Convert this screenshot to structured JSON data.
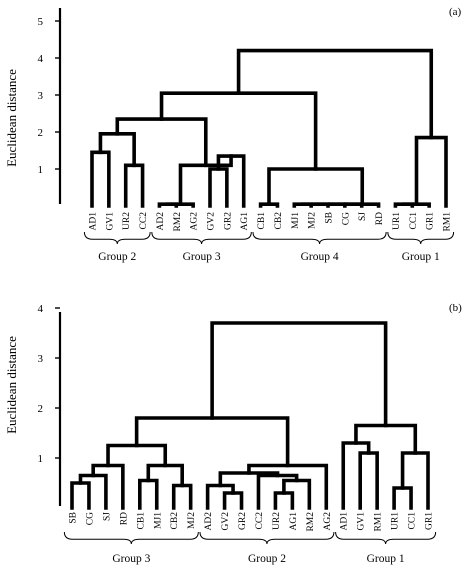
{
  "panels": [
    {
      "id": "a",
      "tag": "(a)",
      "ylabel": "Euclidean distance",
      "yticks": [
        "1",
        "2",
        "3",
        "4",
        "5"
      ],
      "ymax": 5,
      "leaves": [
        "AD1",
        "GV1",
        "UR2",
        "CC2",
        "AD2",
        "RM2",
        "AG2",
        "GV2",
        "GR2",
        "AG1",
        "CB1",
        "CB2",
        "MJ1",
        "MJ2",
        "SB",
        "CG",
        "SJ",
        "RD",
        "UR1",
        "CC1",
        "GR1",
        "RM1"
      ],
      "groups": [
        {
          "label": "Group 2",
          "first": 0,
          "last": 3
        },
        {
          "label": "Group 3",
          "first": 4,
          "last": 9
        },
        {
          "label": "Group 4",
          "first": 10,
          "last": 17
        },
        {
          "label": "Group 1",
          "first": 18,
          "last": 21
        }
      ],
      "merges": [
        {
          "a": "L0",
          "b": "L1",
          "h": 1.45
        },
        {
          "a": "L2",
          "b": "L3",
          "h": 1.1
        },
        {
          "a": "N0",
          "b": "N1",
          "h": 1.95
        },
        {
          "a": "L4",
          "b": "L5",
          "h": 0.05
        },
        {
          "a": "N3",
          "b": "L6",
          "h": 0.05
        },
        {
          "a": "L7",
          "b": "L8",
          "h": 1.0
        },
        {
          "a": "N5",
          "b": "L9",
          "h": 1.35
        },
        {
          "a": "N4",
          "b": "N6",
          "h": 1.1
        },
        {
          "a": "N2",
          "b": "N7",
          "h": 2.35
        },
        {
          "a": "L10",
          "b": "L11",
          "h": 0.05
        },
        {
          "a": "L12",
          "b": "L13",
          "h": 0.05
        },
        {
          "a": "N10",
          "b": "L14",
          "h": 0.05
        },
        {
          "a": "N11",
          "b": "L15",
          "h": 0.05
        },
        {
          "a": "N12",
          "b": "L16",
          "h": 0.05
        },
        {
          "a": "N13",
          "b": "L17",
          "h": 0.05
        },
        {
          "a": "N9",
          "b": "N14",
          "h": 1.0
        },
        {
          "a": "N8",
          "b": "N15",
          "h": 3.05
        },
        {
          "a": "L18",
          "b": "L19",
          "h": 0.05
        },
        {
          "a": "N17",
          "b": "L20",
          "h": 0.05
        },
        {
          "a": "N18",
          "b": "L21",
          "h": 1.85
        },
        {
          "a": "N16",
          "b": "N19",
          "h": 4.2
        }
      ]
    },
    {
      "id": "b",
      "tag": "(b)",
      "ylabel": "Euclidean distance",
      "yticks": [
        "1",
        "2",
        "3",
        "4"
      ],
      "ymax": 4,
      "leaves": [
        "SB",
        "CG",
        "SJ",
        "RD",
        "CB1",
        "MJ1",
        "CB2",
        "MJ2",
        "AD2",
        "GV2",
        "GR2",
        "CC2",
        "UR2",
        "AG1",
        "RM2",
        "AG2",
        "AD1",
        "GV1",
        "RM1",
        "UR1",
        "CC1",
        "GR1"
      ],
      "groups": [
        {
          "label": "Group 3",
          "first": 0,
          "last": 7
        },
        {
          "label": "Group 2",
          "first": 8,
          "last": 15
        },
        {
          "label": "Group 1",
          "first": 16,
          "last": 21
        }
      ],
      "merges": [
        {
          "a": "L0",
          "b": "L1",
          "h": 0.5
        },
        {
          "a": "N0",
          "b": "L2",
          "h": 0.65
        },
        {
          "a": "N1",
          "b": "L3",
          "h": 0.85
        },
        {
          "a": "L4",
          "b": "L5",
          "h": 0.55
        },
        {
          "a": "L6",
          "b": "L7",
          "h": 0.45
        },
        {
          "a": "N3",
          "b": "N4",
          "h": 0.85
        },
        {
          "a": "N2",
          "b": "N5",
          "h": 1.25
        },
        {
          "a": "L9",
          "b": "L10",
          "h": 0.3
        },
        {
          "a": "L8",
          "b": "N7",
          "h": 0.45
        },
        {
          "a": "L12",
          "b": "L13",
          "h": 0.3
        },
        {
          "a": "N9",
          "b": "L14",
          "h": 0.55
        },
        {
          "a": "L11",
          "b": "N10",
          "h": 0.65
        },
        {
          "a": "N8",
          "b": "N11",
          "h": 0.7
        },
        {
          "a": "N12",
          "b": "L15",
          "h": 0.85
        },
        {
          "a": "N6",
          "b": "N13",
          "h": 1.8
        },
        {
          "a": "L17",
          "b": "L18",
          "h": 1.1
        },
        {
          "a": "L16",
          "b": "N15",
          "h": 1.3
        },
        {
          "a": "L19",
          "b": "L20",
          "h": 0.4
        },
        {
          "a": "N17",
          "b": "L21",
          "h": 1.1
        },
        {
          "a": "N16",
          "b": "N18",
          "h": 1.65
        },
        {
          "a": "N14",
          "b": "N19",
          "h": 3.7
        }
      ]
    }
  ]
}
